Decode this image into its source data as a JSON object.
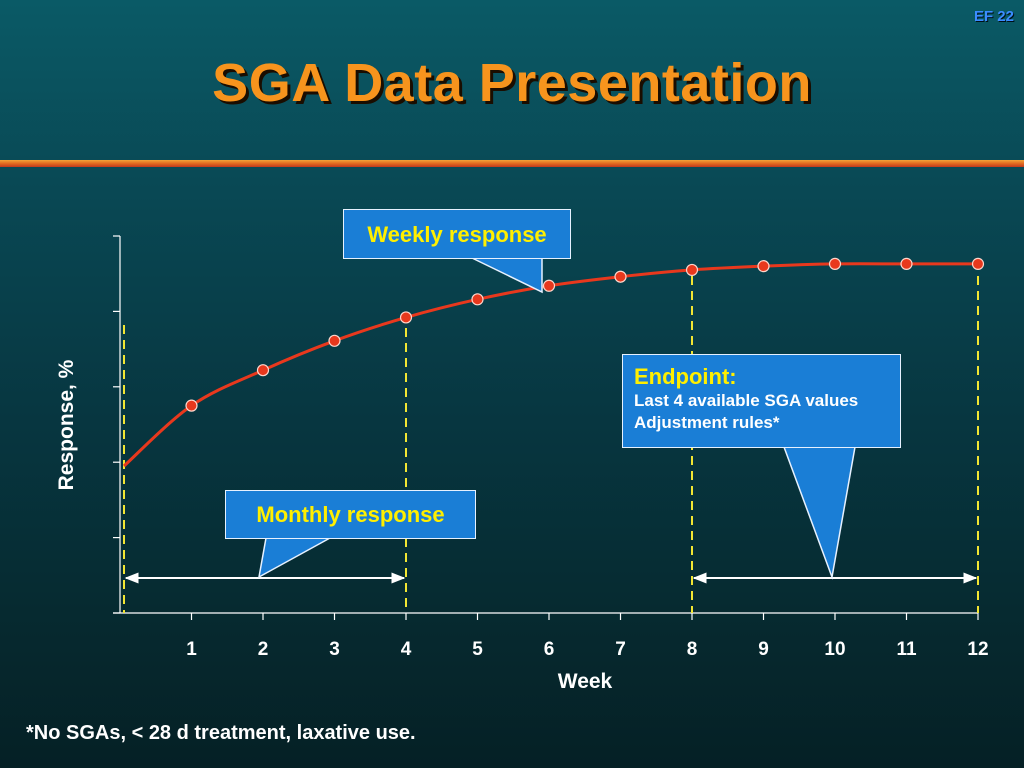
{
  "header": {
    "slide_number": "EF 22",
    "title": "SGA Data Presentation"
  },
  "callouts": {
    "weekly": "Weekly response",
    "monthly": "Monthly response",
    "endpoint_title": "Endpoint:",
    "endpoint_line1": "Last 4 available SGA values",
    "endpoint_line2": "Adjustment rules*"
  },
  "footnote": "*No SGAs, < 28 d treatment, laxative use.",
  "colors": {
    "curve": "#e8381d",
    "dashed_markers": "#f2e633",
    "callout_fill": "#1a7ed6",
    "title": "#f7941d"
  },
  "chart_data": {
    "type": "line",
    "xlabel": "Week",
    "ylabel": "Response, %",
    "x": [
      1,
      2,
      3,
      4,
      5,
      6,
      7,
      8,
      9,
      10,
      11,
      12
    ],
    "x_tick_labels": [
      "1",
      "2",
      "3",
      "4",
      "5",
      "6",
      "7",
      "8",
      "9",
      "10",
      "11",
      "12"
    ],
    "series": [
      {
        "values": [
          27.5,
          32.2,
          36.1,
          39.2,
          41.6,
          43.4,
          44.6,
          45.5,
          46.0,
          46.3,
          46.3,
          46.3
        ],
        "curve_start": {
          "x": 0,
          "y": 19.5
        }
      }
    ],
    "xlim": [
      0,
      12
    ],
    "ylim": [
      0,
      50
    ],
    "y_ticks": [
      0,
      10,
      20,
      30,
      40,
      50
    ],
    "y_tick_labels_shown": false,
    "grid": false,
    "vertical_markers": [
      0,
      4,
      8,
      12
    ],
    "spans": [
      {
        "from": 0,
        "to": 4
      },
      {
        "from": 8,
        "to": 12
      }
    ]
  }
}
